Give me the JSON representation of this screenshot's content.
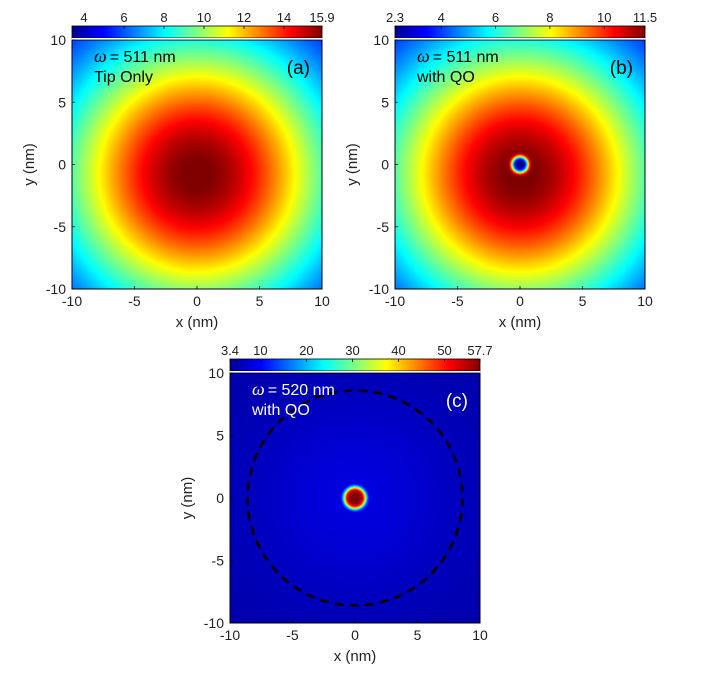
{
  "colors": {
    "jet": [
      "#00008f",
      "#0000ff",
      "#0080ff",
      "#00ffff",
      "#80ff80",
      "#ffff00",
      "#ff8000",
      "#ff0000",
      "#800000"
    ],
    "annotation_dark": "#000000",
    "annotation_light": "#ffffff",
    "circle_dash": "#000000"
  },
  "chart_data": [
    {
      "type": "heatmap",
      "panel_label": "(a)",
      "annotation_symbol": "ω",
      "annotation_line1": "= 511 nm",
      "annotation_line2": "Tip Only",
      "xlabel": "x (nm)",
      "ylabel": "y (nm)",
      "xlim": [
        -10,
        10
      ],
      "ylim": [
        -10,
        10
      ],
      "xticks": [
        -10,
        -5,
        0,
        5,
        10
      ],
      "yticks": [
        -10,
        -5,
        0,
        5,
        10
      ],
      "colorbar": {
        "min": 3.4,
        "max": 15.9,
        "ticks": [
          4,
          6,
          8,
          10,
          12,
          14,
          15.9
        ]
      },
      "field": {
        "peak_center": [
          0,
          -0.8
        ],
        "peak_value": 15.9,
        "edge_value": 3.4,
        "gaussian_width_nm": 8.0,
        "has_hole": false
      }
    },
    {
      "type": "heatmap",
      "panel_label": "(b)",
      "annotation_symbol": "ω",
      "annotation_line1": "= 511 nm",
      "annotation_line2": "with QO",
      "xlabel": "x (nm)",
      "ylabel": "y (nm)",
      "xlim": [
        -10,
        10
      ],
      "ylim": [
        -10,
        10
      ],
      "xticks": [
        -10,
        -5,
        0,
        5,
        10
      ],
      "yticks": [
        -10,
        -5,
        0,
        5,
        10
      ],
      "colorbar": {
        "min": 2.3,
        "max": 11.5,
        "ticks": [
          2.3,
          4,
          6,
          8,
          10,
          11.5
        ]
      },
      "field": {
        "peak_center": [
          0,
          -0.8
        ],
        "peak_value": 11.5,
        "edge_value": 2.3,
        "gaussian_width_nm": 8.0,
        "has_hole": true,
        "hole_center": [
          0,
          0
        ],
        "hole_radius_nm": 0.5,
        "hole_value": 2.3
      }
    },
    {
      "type": "heatmap",
      "panel_label": "(c)",
      "annotation_symbol": "ω",
      "annotation_line1": "= 520 nm",
      "annotation_line2": "with QO",
      "xlabel": "x (nm)",
      "ylabel": "y (nm)",
      "xlim": [
        -10,
        10
      ],
      "ylim": [
        -10,
        10
      ],
      "xticks": [
        -10,
        -5,
        0,
        5,
        10
      ],
      "yticks": [
        -10,
        -5,
        0,
        5,
        10
      ],
      "colorbar": {
        "min": 3.4,
        "max": 57.7,
        "ticks": [
          3.4,
          10,
          20,
          30,
          40,
          50,
          57.7
        ]
      },
      "field": {
        "peak_center": [
          0,
          0
        ],
        "peak_value": 57.7,
        "edge_value": 3.4,
        "background_value": 5,
        "spot_radius_nm": 0.9,
        "has_hole": false
      },
      "dashed_circle": {
        "center": [
          0,
          0
        ],
        "radius_nm": 8.6
      }
    }
  ]
}
